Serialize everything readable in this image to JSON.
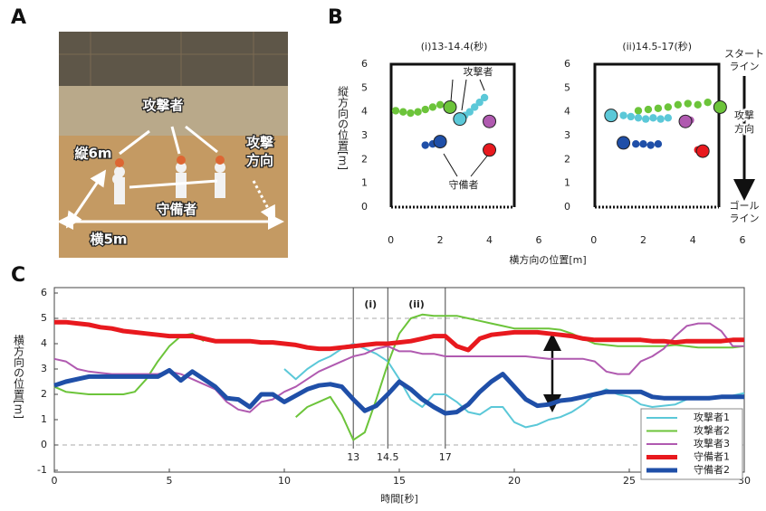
{
  "panel_labels": [
    "A",
    "B",
    "C"
  ],
  "photo": {
    "attackers": "攻撃者",
    "length": "縦6m",
    "direction": [
      "攻撃",
      "方向"
    ],
    "defenders": "守備者",
    "width": "横5m"
  },
  "panel_b": {
    "ylabel": "縦方向の位置[m]",
    "xlabel": "横方向の位置[m]",
    "attackers": "攻撃者",
    "defenders": "守備者",
    "start_line": [
      "スタート",
      "ライン"
    ],
    "direction": [
      "攻撃",
      "方向"
    ],
    "goal_line": [
      "ゴール",
      "ライン"
    ]
  },
  "chart_data": [
    {
      "type": "scatter",
      "title": "(i)13-14.4(秒)",
      "xlim": [
        -0.5,
        6
      ],
      "ylim": [
        -0.5,
        6.5
      ],
      "xticks": [
        0,
        2,
        4,
        6
      ],
      "yticks": [
        0,
        1,
        2,
        3,
        4,
        5,
        6
      ],
      "series": [
        {
          "name": "攻撃者2",
          "color": "#6cc43a",
          "x": [
            0.2,
            0.5,
            0.8,
            1.1,
            1.4,
            1.7,
            2.0,
            2.4
          ],
          "y": [
            4.05,
            4.0,
            3.95,
            4.0,
            4.1,
            4.2,
            4.3,
            4.2
          ]
        },
        {
          "name": "攻撃者1",
          "color": "#5bc8d8",
          "x": [
            3.8,
            3.6,
            3.4,
            3.2,
            3.0,
            2.8
          ],
          "y": [
            4.6,
            4.4,
            4.2,
            4.0,
            3.85,
            3.7
          ]
        },
        {
          "name": "攻撃者3",
          "color": "#b05ab0",
          "x": [
            4.0
          ],
          "y": [
            3.6
          ]
        },
        {
          "name": "守備者1",
          "color": "#e8191e",
          "x": [
            4.0
          ],
          "y": [
            2.4
          ]
        },
        {
          "name": "守備者2",
          "color": "#1f4fa8",
          "x": [
            1.4,
            1.7,
            2.0
          ],
          "y": [
            2.6,
            2.65,
            2.75
          ]
        }
      ]
    },
    {
      "type": "scatter",
      "title": "(ii)14.5-17(秒)",
      "xlim": [
        -0.5,
        6
      ],
      "ylim": [
        -0.5,
        6.5
      ],
      "xticks": [
        0,
        2,
        4,
        6
      ],
      "yticks": [
        0,
        1,
        2,
        3,
        4,
        5,
        6
      ],
      "series": [
        {
          "name": "攻撃者2",
          "color": "#6cc43a",
          "x": [
            1.8,
            2.2,
            2.6,
            3.0,
            3.4,
            3.8,
            4.2,
            4.6,
            5.1
          ],
          "y": [
            4.05,
            4.1,
            4.15,
            4.2,
            4.3,
            4.35,
            4.3,
            4.4,
            4.2
          ]
        },
        {
          "name": "攻撃者1",
          "color": "#5bc8d8",
          "x": [
            3.0,
            2.7,
            2.4,
            2.1,
            1.8,
            1.5,
            1.2,
            0.7
          ],
          "y": [
            3.75,
            3.7,
            3.75,
            3.7,
            3.75,
            3.8,
            3.85,
            3.85
          ]
        },
        {
          "name": "攻撃者3",
          "color": "#b05ab0",
          "x": [
            3.9,
            3.7
          ],
          "y": [
            3.65,
            3.6
          ]
        },
        {
          "name": "守備者1",
          "color": "#e8191e",
          "x": [
            4.2,
            4.4
          ],
          "y": [
            2.4,
            2.35
          ]
        },
        {
          "name": "守備者2",
          "color": "#1f4fa8",
          "x": [
            2.6,
            2.3,
            2.0,
            1.7,
            1.2
          ],
          "y": [
            2.65,
            2.6,
            2.65,
            2.65,
            2.7
          ]
        }
      ]
    },
    {
      "type": "line",
      "xlabel": "時間[秒]",
      "ylabel": "横方向の位置[m]",
      "xlim": [
        0,
        30
      ],
      "ylim": [
        -1,
        6
      ],
      "xticks": [
        0,
        5,
        10,
        15,
        20,
        25,
        30
      ],
      "yticks": [
        -1,
        0,
        1,
        2,
        3,
        4,
        5,
        6
      ],
      "vlines": [
        13,
        14.5,
        17
      ],
      "period_labels": [
        "(i)",
        "(ii)"
      ],
      "legend": "lower right",
      "x": [
        0,
        0.5,
        1,
        1.5,
        2,
        2.5,
        3,
        3.5,
        4,
        4.5,
        5,
        5.5,
        6,
        6.5,
        7,
        7.5,
        8,
        8.5,
        9,
        9.5,
        10,
        10.5,
        11,
        11.5,
        12,
        12.5,
        13,
        13.5,
        14,
        14.5,
        15,
        15.5,
        16,
        16.5,
        17,
        17.5,
        18,
        18.5,
        19,
        19.5,
        20,
        20.5,
        21,
        21.5,
        22,
        22.5,
        23,
        23.5,
        24,
        24.5,
        25,
        25.5,
        26,
        26.5,
        27,
        27.5,
        28,
        28.5,
        29,
        29.5,
        30
      ],
      "series": [
        {
          "name": "攻撃者1",
          "color": "#5bc8d8",
          "values": [
            null,
            null,
            null,
            null,
            null,
            null,
            null,
            null,
            null,
            null,
            null,
            null,
            null,
            null,
            null,
            null,
            null,
            null,
            null,
            null,
            3.0,
            2.6,
            3.0,
            3.3,
            3.5,
            3.8,
            4.0,
            3.8,
            3.6,
            3.3,
            2.6,
            1.8,
            1.5,
            2.0,
            2.0,
            1.7,
            1.3,
            1.2,
            1.5,
            1.5,
            0.9,
            0.7,
            0.8,
            1.0,
            1.1,
            1.3,
            1.6,
            2.0,
            2.2,
            2.0,
            1.9,
            1.6,
            1.5,
            1.55,
            1.6,
            1.8,
            1.85,
            1.9,
            1.9,
            1.95,
            2.05
          ]
        },
        {
          "name": "攻撃者2",
          "color": "#6cc43a",
          "values": [
            2.3,
            2.1,
            2.05,
            2.0,
            2.0,
            2.0,
            2.0,
            2.1,
            2.6,
            3.3,
            3.9,
            4.3,
            4.4,
            4.1,
            null,
            null,
            null,
            null,
            null,
            null,
            null,
            1.1,
            1.5,
            1.7,
            1.9,
            1.2,
            0.2,
            0.5,
            1.8,
            3.2,
            4.4,
            5.0,
            5.15,
            5.1,
            5.1,
            5.1,
            5.0,
            4.9,
            4.8,
            4.7,
            4.6,
            4.6,
            4.6,
            4.6,
            4.55,
            4.4,
            4.2,
            4.0,
            3.95,
            3.9,
            3.9,
            3.9,
            3.9,
            3.9,
            3.95,
            3.9,
            3.85,
            3.85,
            3.85,
            3.85,
            3.9
          ]
        },
        {
          "name": "攻撃者3",
          "color": "#b05ab0",
          "values": [
            3.4,
            3.3,
            3.0,
            2.9,
            2.85,
            2.8,
            2.8,
            2.8,
            2.8,
            2.8,
            2.9,
            2.8,
            2.6,
            2.4,
            2.2,
            1.7,
            1.4,
            1.3,
            1.7,
            1.8,
            2.1,
            2.3,
            2.6,
            2.9,
            3.1,
            3.3,
            3.5,
            3.6,
            3.8,
            3.9,
            3.7,
            3.7,
            3.6,
            3.6,
            3.5,
            3.5,
            3.5,
            3.5,
            3.5,
            3.5,
            3.5,
            3.5,
            3.45,
            3.4,
            3.4,
            3.4,
            3.4,
            3.3,
            2.9,
            2.8,
            2.8,
            3.3,
            3.5,
            3.8,
            4.3,
            4.7,
            4.8,
            4.8,
            4.5,
            3.9,
            3.9
          ]
        },
        {
          "name": "守備者1",
          "color": "#e8191e",
          "values": [
            4.85,
            4.85,
            4.8,
            4.75,
            4.65,
            4.6,
            4.5,
            4.45,
            4.4,
            4.35,
            4.3,
            4.3,
            4.3,
            4.2,
            4.1,
            4.1,
            4.1,
            4.1,
            4.05,
            4.05,
            4.0,
            3.95,
            3.85,
            3.8,
            3.8,
            3.85,
            3.9,
            3.95,
            4.0,
            4.0,
            4.05,
            4.1,
            4.2,
            4.3,
            4.3,
            3.9,
            3.75,
            4.2,
            4.35,
            4.4,
            4.45,
            4.45,
            4.45,
            4.4,
            4.35,
            4.3,
            4.2,
            4.15,
            4.15,
            4.15,
            4.15,
            4.15,
            4.1,
            4.1,
            4.05,
            4.1,
            4.1,
            4.1,
            4.1,
            4.15,
            4.15
          ]
        },
        {
          "name": "守備者2",
          "color": "#1f4fa8",
          "values": [
            2.35,
            2.5,
            2.6,
            2.7,
            2.7,
            2.7,
            2.7,
            2.7,
            2.7,
            2.7,
            2.95,
            2.55,
            2.9,
            2.6,
            2.3,
            1.85,
            1.8,
            1.5,
            2.0,
            2.0,
            1.7,
            1.95,
            2.2,
            2.35,
            2.4,
            2.3,
            1.8,
            1.35,
            1.55,
            2.0,
            2.5,
            2.2,
            1.8,
            1.5,
            1.25,
            1.3,
            1.6,
            2.1,
            2.5,
            2.8,
            2.3,
            1.8,
            1.55,
            1.6,
            1.75,
            1.8,
            1.9,
            2.0,
            2.1,
            2.1,
            2.1,
            2.1,
            1.9,
            1.85,
            1.85,
            1.85,
            1.85,
            1.85,
            1.9,
            1.9,
            1.9
          ]
        }
      ]
    }
  ]
}
